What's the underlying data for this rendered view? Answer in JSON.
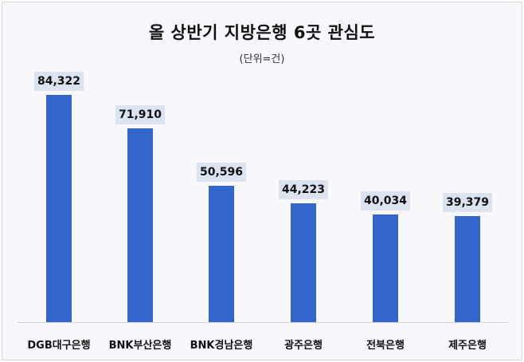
{
  "chart_data": {
    "type": "bar",
    "title": "올 상반기 지방은행 6곳 관심도",
    "subtitle": "(단위=건)",
    "xlabel": "",
    "ylabel": "",
    "categories": [
      "DGB대구은행",
      "BNK부산은행",
      "BNK경남은행",
      "광주은행",
      "전북은행",
      "제주은행"
    ],
    "values": [
      84322,
      71910,
      50596,
      44223,
      40034,
      39379
    ],
    "value_labels": [
      "84,322",
      "71,910",
      "50,596",
      "44,223",
      "40,034",
      "39,379"
    ],
    "ylim": [
      0,
      84322
    ],
    "grid": false,
    "legend": null,
    "bar_color": "#3366cc",
    "label_bg_color": "#dbe3f1"
  }
}
